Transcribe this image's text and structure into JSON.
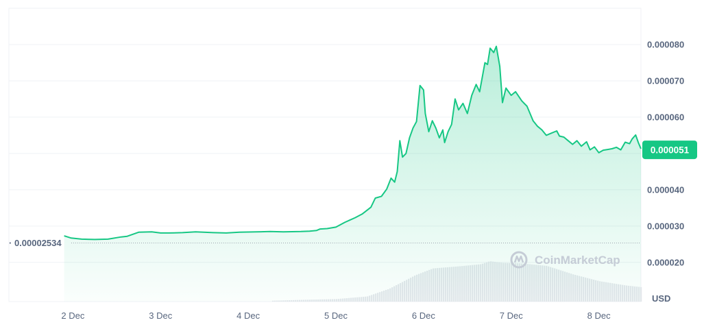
{
  "chart_data": {
    "type": "area",
    "currency_label": "USD",
    "watermark": "CoinMarketCap",
    "reference_line": {
      "label": "· 0.00002534",
      "value": 2.534e-05
    },
    "current_price": {
      "label": "0.000051",
      "value": 5.1e-05
    },
    "y_ticks": [
      "0.000080",
      "0.000070",
      "0.000060",
      "0.000040",
      "0.000030",
      "0.000020"
    ],
    "y_tick_values": [
      8e-05,
      7e-05,
      6e-05,
      4e-05,
      3e-05,
      2e-05
    ],
    "x_ticks": [
      "2 Dec",
      "3 Dec",
      "4 Dec",
      "5 Dec",
      "6 Dec",
      "7 Dec",
      "8 Dec"
    ],
    "x_tick_values": [
      2,
      3,
      4,
      5,
      6,
      7,
      8
    ],
    "xlim": [
      1.27,
      8.48
    ],
    "ylim": [
      9.2e-06,
      9e-05
    ],
    "series": [
      {
        "values": [
          [
            1.9,
            2.73e-05
          ],
          [
            1.98,
            2.67e-05
          ],
          [
            2.1,
            2.64e-05
          ],
          [
            2.25,
            2.63e-05
          ],
          [
            2.4,
            2.64e-05
          ],
          [
            2.55,
            2.7e-05
          ],
          [
            2.62,
            2.72e-05
          ],
          [
            2.75,
            2.83e-05
          ],
          [
            2.9,
            2.84e-05
          ],
          [
            3.0,
            2.81e-05
          ],
          [
            3.1,
            2.81e-05
          ],
          [
            3.25,
            2.82e-05
          ],
          [
            3.4,
            2.84e-05
          ],
          [
            3.6,
            2.82e-05
          ],
          [
            3.75,
            2.81e-05
          ],
          [
            3.9,
            2.83e-05
          ],
          [
            4.1,
            2.84e-05
          ],
          [
            4.25,
            2.85e-05
          ],
          [
            4.4,
            2.84e-05
          ],
          [
            4.6,
            2.85e-05
          ],
          [
            4.7,
            2.86e-05
          ],
          [
            4.78,
            2.88e-05
          ],
          [
            4.82,
            2.92e-05
          ],
          [
            4.9,
            2.93e-05
          ],
          [
            5.0,
            2.97e-05
          ],
          [
            5.1,
            3.1e-05
          ],
          [
            5.22,
            3.23e-05
          ],
          [
            5.3,
            3.33e-05
          ],
          [
            5.4,
            3.52e-05
          ],
          [
            5.45,
            3.77e-05
          ],
          [
            5.52,
            3.82e-05
          ],
          [
            5.58,
            4.02e-05
          ],
          [
            5.63,
            4.32e-05
          ],
          [
            5.67,
            4.21e-05
          ],
          [
            5.7,
            4.5e-05
          ],
          [
            5.73,
            5.35e-05
          ],
          [
            5.76,
            4.9e-05
          ],
          [
            5.8,
            5e-05
          ],
          [
            5.84,
            5.43e-05
          ],
          [
            5.88,
            5.7e-05
          ],
          [
            5.92,
            5.88e-05
          ],
          [
            5.96,
            6.87e-05
          ],
          [
            6.0,
            6.75e-05
          ],
          [
            6.02,
            6.1e-05
          ],
          [
            6.06,
            5.6e-05
          ],
          [
            6.1,
            5.9e-05
          ],
          [
            6.14,
            5.7e-05
          ],
          [
            6.18,
            5.43e-05
          ],
          [
            6.22,
            5.65e-05
          ],
          [
            6.24,
            5.3e-05
          ],
          [
            6.28,
            5.6e-05
          ],
          [
            6.32,
            5.8e-05
          ],
          [
            6.36,
            6.5e-05
          ],
          [
            6.4,
            6.2e-05
          ],
          [
            6.45,
            6.38e-05
          ],
          [
            6.5,
            6.1e-05
          ],
          [
            6.55,
            6.6e-05
          ],
          [
            6.6,
            6.9e-05
          ],
          [
            6.64,
            6.7e-05
          ],
          [
            6.7,
            7.5e-05
          ],
          [
            6.73,
            7.45e-05
          ],
          [
            6.76,
            7.9e-05
          ],
          [
            6.8,
            7.78e-05
          ],
          [
            6.83,
            7.95e-05
          ],
          [
            6.87,
            7.4e-05
          ],
          [
            6.9,
            6.4e-05
          ],
          [
            6.94,
            6.8e-05
          ],
          [
            7.0,
            6.6e-05
          ],
          [
            7.05,
            6.7e-05
          ],
          [
            7.12,
            6.45e-05
          ],
          [
            7.18,
            6.3e-05
          ],
          [
            7.25,
            5.9e-05
          ],
          [
            7.3,
            5.75e-05
          ],
          [
            7.35,
            5.65e-05
          ],
          [
            7.4,
            5.5e-05
          ],
          [
            7.45,
            5.55e-05
          ],
          [
            7.52,
            5.62e-05
          ],
          [
            7.55,
            5.48e-05
          ],
          [
            7.6,
            5.45e-05
          ],
          [
            7.65,
            5.35e-05
          ],
          [
            7.7,
            5.25e-05
          ],
          [
            7.75,
            5.35e-05
          ],
          [
            7.8,
            5.2e-05
          ],
          [
            7.86,
            5.32e-05
          ],
          [
            7.9,
            5.1e-05
          ],
          [
            7.95,
            5.18e-05
          ],
          [
            8.0,
            5.02e-05
          ],
          [
            8.05,
            5.09e-05
          ],
          [
            8.1,
            5.11e-05
          ],
          [
            8.15,
            5.13e-05
          ],
          [
            8.2,
            5.17e-05
          ],
          [
            8.25,
            5.1e-05
          ],
          [
            8.3,
            5.31e-05
          ],
          [
            8.35,
            5.27e-05
          ],
          [
            8.38,
            5.4e-05
          ],
          [
            8.42,
            5.51e-05
          ],
          [
            8.45,
            5.3e-05
          ],
          [
            8.48,
            5.13e-05
          ]
        ],
        "color": "#16c784"
      }
    ],
    "volume": {
      "color": "#e3e6eb",
      "values": [
        [
          4.25,
          0.02
        ],
        [
          4.6,
          0.04
        ],
        [
          5.0,
          0.06
        ],
        [
          5.35,
          0.12
        ],
        [
          5.6,
          0.3
        ],
        [
          5.9,
          0.62
        ],
        [
          6.1,
          0.78
        ],
        [
          6.4,
          0.83
        ],
        [
          6.65,
          0.88
        ],
        [
          6.75,
          0.95
        ],
        [
          6.9,
          0.91
        ],
        [
          7.1,
          0.9
        ],
        [
          7.4,
          0.84
        ],
        [
          7.7,
          0.64
        ],
        [
          8.0,
          0.48
        ],
        [
          8.3,
          0.38
        ],
        [
          8.48,
          0.34
        ]
      ]
    },
    "grid": true
  }
}
